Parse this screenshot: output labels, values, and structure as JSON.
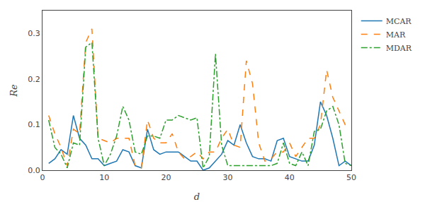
{
  "chart_data": {
    "type": "line",
    "x": [
      1,
      2,
      3,
      4,
      5,
      6,
      7,
      8,
      9,
      10,
      11,
      12,
      13,
      14,
      15,
      16,
      17,
      18,
      19,
      20,
      21,
      22,
      23,
      24,
      25,
      26,
      27,
      28,
      29,
      30,
      31,
      32,
      33,
      34,
      35,
      36,
      37,
      38,
      39,
      40,
      41,
      42,
      43,
      44,
      45,
      46,
      47,
      48,
      49,
      50
    ],
    "series": [
      {
        "name": "MCAR",
        "line_style": "solid",
        "values": [
          0.015,
          0.025,
          0.045,
          0.035,
          0.12,
          0.07,
          0.055,
          0.025,
          0.025,
          0.01,
          0.015,
          0.02,
          0.045,
          0.04,
          0.01,
          0.005,
          0.09,
          0.045,
          0.035,
          0.04,
          0.04,
          0.04,
          0.03,
          0.02,
          0.02,
          0.0,
          0.005,
          0.02,
          0.035,
          0.065,
          0.055,
          0.1,
          0.06,
          0.03,
          0.025,
          0.025,
          0.02,
          0.065,
          0.07,
          0.03,
          0.025,
          0.02,
          0.02,
          0.055,
          0.15,
          0.12,
          0.07,
          0.01,
          0.02,
          0.01
        ]
      },
      {
        "name": "MAR",
        "line_style": "dashed",
        "values": [
          0.12,
          0.08,
          0.05,
          0.01,
          0.09,
          0.08,
          0.28,
          0.31,
          0.07,
          0.065,
          0.06,
          0.07,
          0.07,
          0.07,
          0.01,
          0.005,
          0.11,
          0.07,
          0.06,
          0.06,
          0.08,
          0.04,
          0.025,
          0.03,
          0.04,
          0.025,
          0.04,
          0.04,
          0.07,
          0.09,
          0.055,
          0.05,
          0.24,
          0.19,
          0.06,
          0.02,
          0.025,
          0.04,
          0.04,
          0.06,
          0.03,
          0.05,
          0.07,
          0.07,
          0.1,
          0.22,
          0.16,
          0.13,
          0.1,
          0.1
        ]
      },
      {
        "name": "MDAR",
        "line_style": "dashdot",
        "values": [
          0.11,
          0.05,
          0.035,
          0.005,
          0.06,
          0.055,
          0.27,
          0.28,
          0.07,
          0.01,
          0.035,
          0.075,
          0.14,
          0.11,
          0.04,
          0.035,
          0.075,
          0.075,
          0.07,
          0.11,
          0.11,
          0.12,
          0.115,
          0.11,
          0.115,
          0.005,
          0.03,
          0.255,
          0.055,
          0.01,
          0.01,
          0.01,
          0.01,
          0.01,
          0.01,
          0.01,
          0.01,
          0.015,
          0.06,
          0.015,
          0.01,
          0.04,
          0.01,
          0.085,
          0.09,
          0.13,
          0.14,
          0.1,
          0.015,
          0.01
        ]
      }
    ],
    "x_label": "d",
    "y_label": "Re",
    "xlim": [
      0,
      50
    ],
    "ylim": [
      0,
      0.35
    ],
    "xticks": [
      0,
      10,
      20,
      30,
      40,
      50
    ],
    "yticks": [
      {
        "value": 0,
        "label": "0.0"
      },
      0.1,
      0.2,
      0.3
    ],
    "legend": "upper right",
    "grid": false
  }
}
